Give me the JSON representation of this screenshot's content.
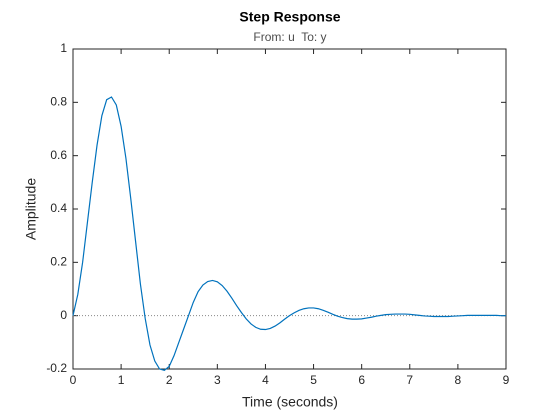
{
  "chart_data": {
    "type": "line",
    "title": "Step Response",
    "subtitle": "From: u  To: y",
    "xlabel": "Time (seconds)",
    "ylabel": "Amplitude",
    "x": [
      0,
      0.1,
      0.2,
      0.3,
      0.4,
      0.5,
      0.6,
      0.7,
      0.8,
      0.9,
      1,
      1.1,
      1.2,
      1.3,
      1.4,
      1.5,
      1.6,
      1.7,
      1.8,
      1.9,
      2,
      2.1,
      2.2,
      2.3,
      2.4,
      2.5,
      2.6,
      2.7,
      2.8,
      2.9,
      3,
      3.1,
      3.2,
      3.3,
      3.4,
      3.5,
      3.6,
      3.7,
      3.8,
      3.9,
      4,
      4.1,
      4.2,
      4.3,
      4.4,
      4.5,
      4.6,
      4.7,
      4.8,
      4.9,
      5,
      5.1,
      5.2,
      5.3,
      5.4,
      5.5,
      5.6,
      5.7,
      5.8,
      5.9,
      6,
      6.1,
      6.2,
      6.3,
      6.4,
      6.5,
      6.6,
      6.7,
      6.8,
      6.9,
      7,
      7.1,
      7.2,
      7.3,
      7.4,
      7.5,
      7.6,
      7.7,
      7.8,
      7.9,
      8,
      8.1,
      8.2,
      8.3,
      8.4,
      8.5,
      8.6,
      8.7,
      8.8,
      8.9,
      9
    ],
    "series": [
      {
        "color": "#0072bd",
        "values": [
          0,
          0.08,
          0.2,
          0.35,
          0.5,
          0.64,
          0.75,
          0.81,
          0.82,
          0.79,
          0.71,
          0.59,
          0.44,
          0.28,
          0.12,
          -0.01,
          -0.11,
          -0.17,
          -0.2,
          -0.205,
          -0.19,
          -0.15,
          -0.1,
          -0.05,
          0,
          0.05,
          0.09,
          0.115,
          0.128,
          0.132,
          0.127,
          0.113,
          0.092,
          0.066,
          0.038,
          0.012,
          -0.012,
          -0.031,
          -0.044,
          -0.051,
          -0.052,
          -0.048,
          -0.039,
          -0.027,
          -0.013,
          0,
          0.011,
          0.02,
          0.026,
          0.029,
          0.029,
          0.026,
          0.02,
          0.013,
          0.005,
          -0.002,
          -0.007,
          -0.011,
          -0.013,
          -0.013,
          -0.012,
          -0.009,
          -0.006,
          -0.002,
          0.001,
          0.004,
          0.005,
          0.006,
          0.006,
          0.006,
          0.005,
          0.003,
          0.001,
          -0.001,
          -0.002,
          -0.003,
          -0.003,
          -0.003,
          -0.003,
          -0.002,
          -0.001,
          0,
          0.001,
          0.001,
          0.001,
          0.001,
          0.001,
          0.001,
          0.001,
          0,
          0
        ]
      }
    ],
    "xlim": [
      0,
      9
    ],
    "xticks": [
      0,
      1,
      2,
      3,
      4,
      5,
      6,
      7,
      8,
      9
    ],
    "ylim": [
      -0.2,
      1
    ],
    "yticks": [
      -0.2,
      0,
      0.2,
      0.4,
      0.6,
      0.8,
      1
    ],
    "grid": false
  }
}
